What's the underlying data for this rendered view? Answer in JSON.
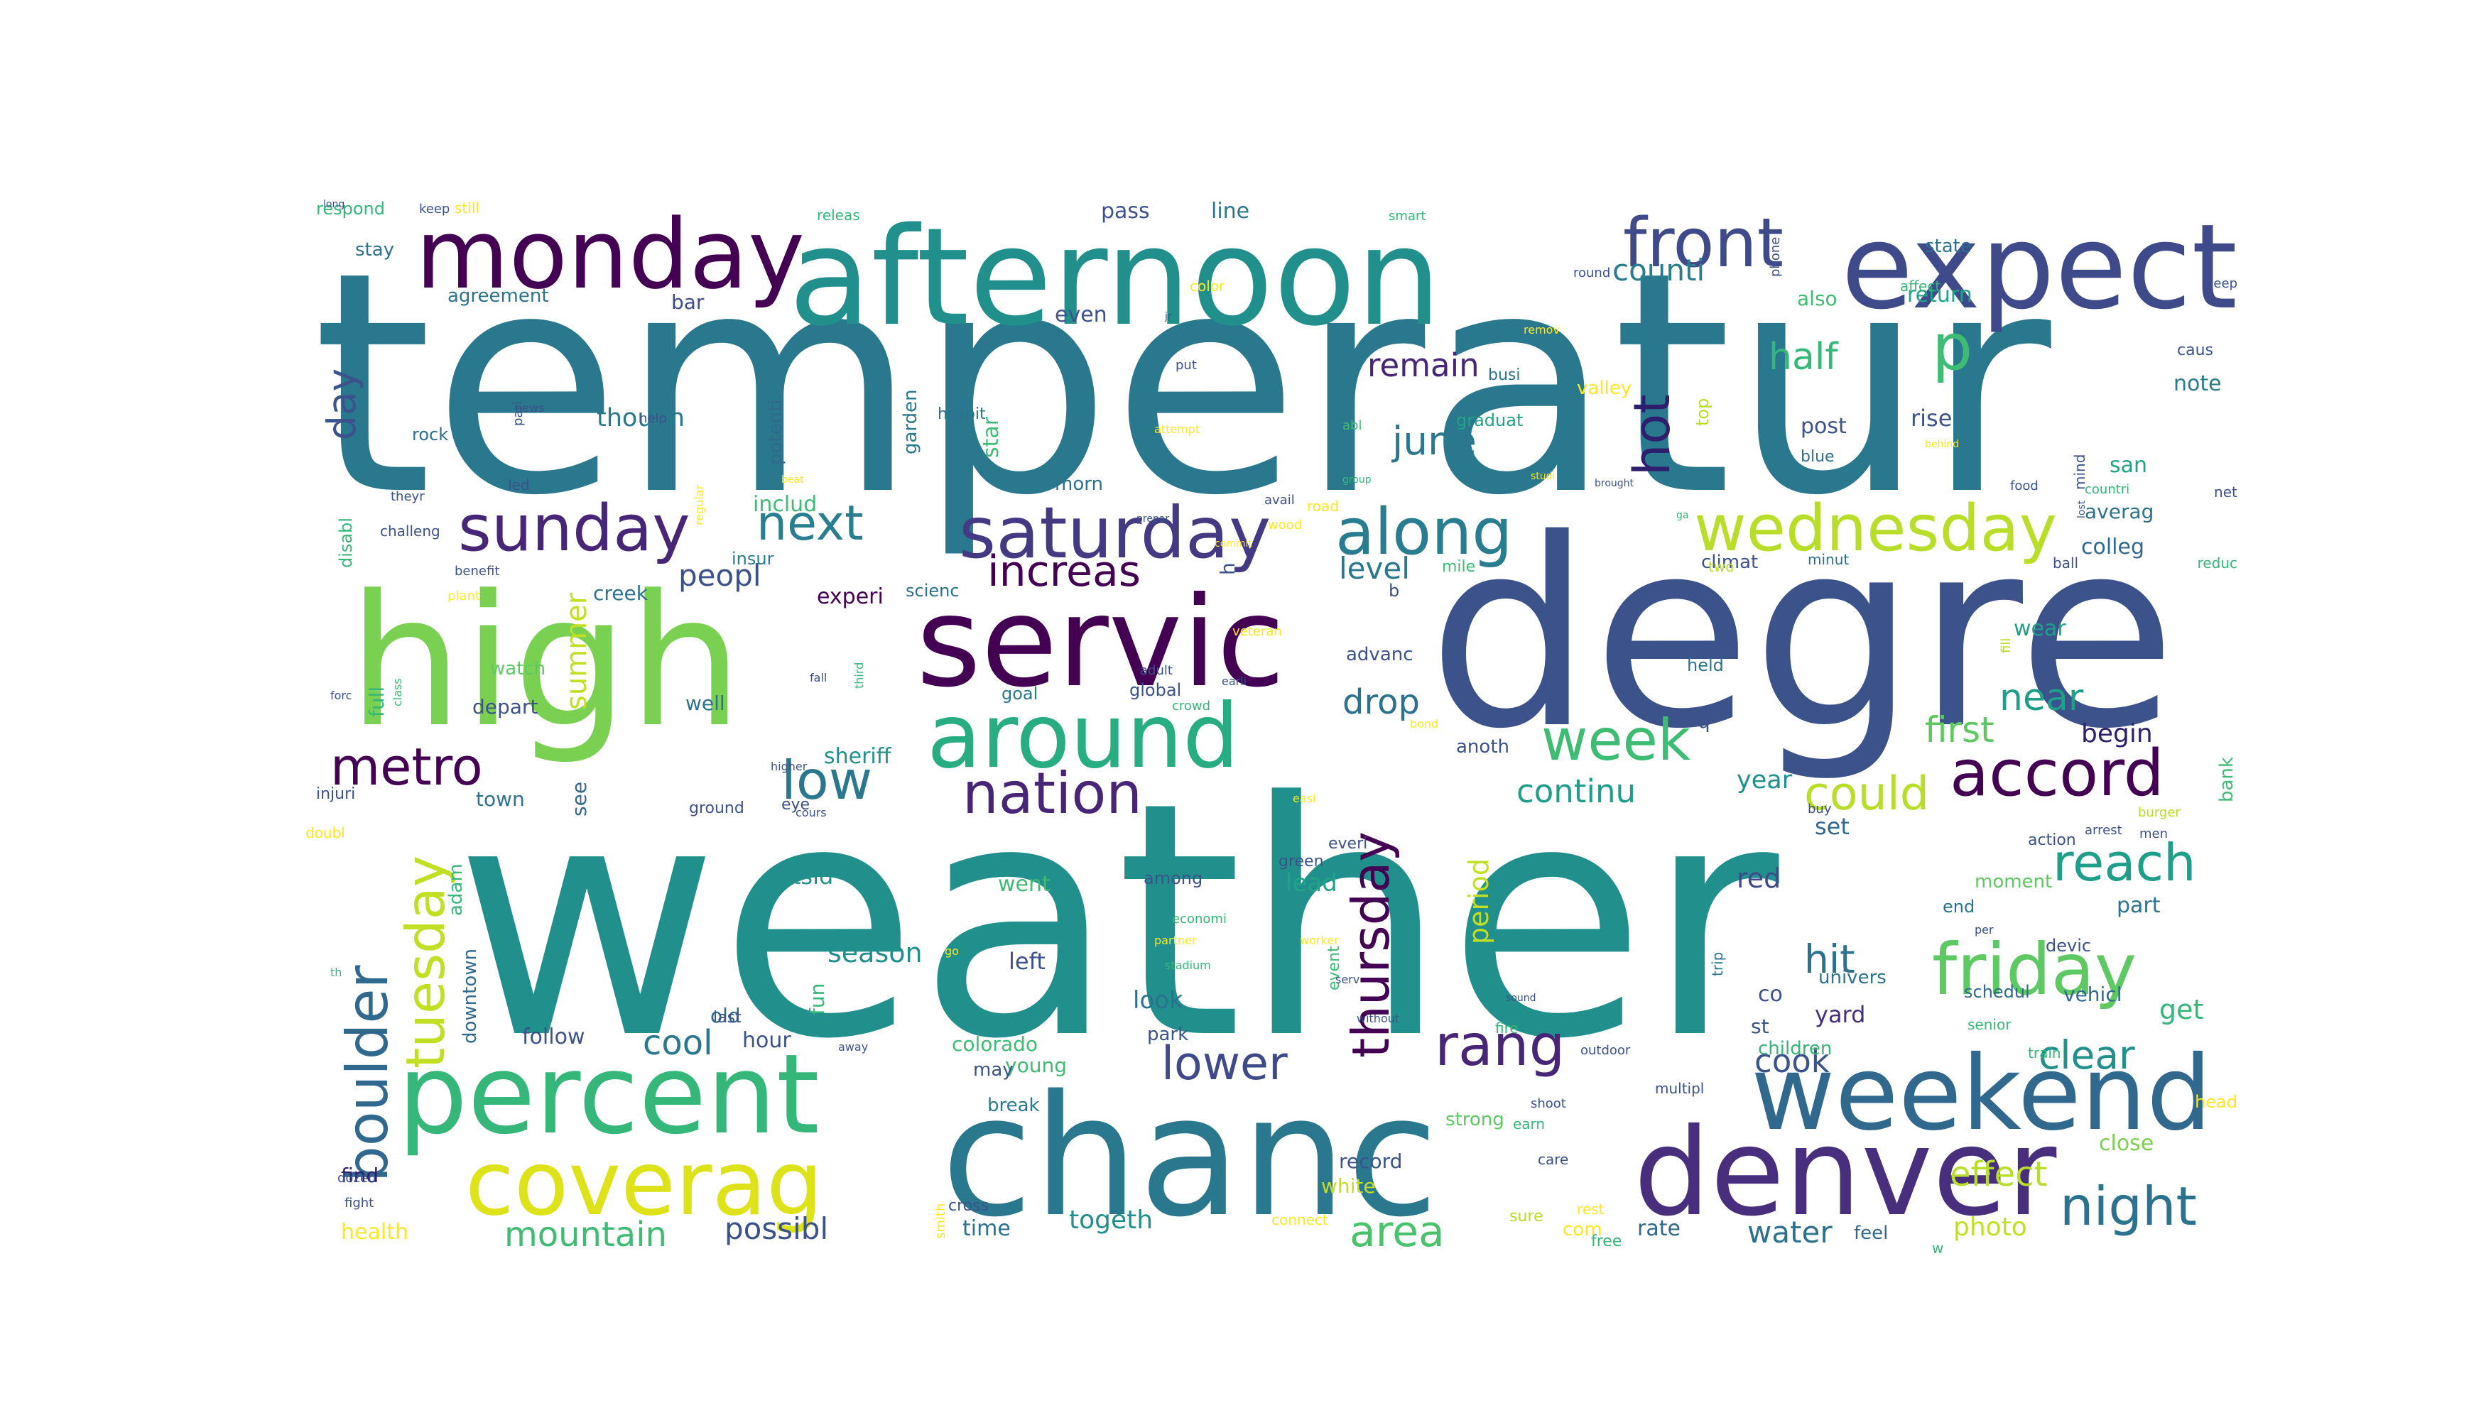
{
  "words": [
    {
      "text": "temperatur",
      "color": "#2a788e"
    },
    {
      "text": "weather",
      "color": "#21908d"
    },
    {
      "text": "degre",
      "color": "#3b528b"
    },
    {
      "text": "high",
      "color": "#7ad151"
    },
    {
      "text": "servic",
      "color": "#440154"
    },
    {
      "text": "chanc",
      "color": "#2a788e"
    },
    {
      "text": "afternoon",
      "color": "#21908d"
    },
    {
      "text": "expect",
      "color": "#3e4a89"
    },
    {
      "text": "monday",
      "color": "#440154"
    },
    {
      "text": "percent",
      "color": "#35b779"
    },
    {
      "text": "coverag",
      "color": "#dde318"
    },
    {
      "text": "denver",
      "color": "#472f7d"
    },
    {
      "text": "weekend",
      "color": "#31688e"
    },
    {
      "text": "around",
      "color": "#27ad81"
    },
    {
      "text": "saturday",
      "color": "#443983"
    },
    {
      "text": "front",
      "color": "#3e4a89"
    },
    {
      "text": "sunday",
      "color": "#482677"
    },
    {
      "text": "along",
      "color": "#287d8e"
    },
    {
      "text": "wednesday",
      "color": "#b8de29"
    },
    {
      "text": "friday",
      "color": "#5ec962"
    },
    {
      "text": "accord",
      "color": "#440154"
    },
    {
      "text": "nation",
      "color": "#482677"
    },
    {
      "text": "boulder",
      "color": "#31688e"
    },
    {
      "text": "tuesday",
      "color": "#c2df23"
    },
    {
      "text": "thursday",
      "color": "#440154"
    },
    {
      "text": "rang",
      "color": "#482677"
    },
    {
      "text": "reach",
      "color": "#1f9e89"
    },
    {
      "text": "night",
      "color": "#2c728e"
    },
    {
      "text": "week",
      "color": "#3fbc73"
    },
    {
      "text": "metro",
      "color": "#440154"
    },
    {
      "text": "low",
      "color": "#2a788e"
    },
    {
      "text": "next",
      "color": "#287d8e"
    },
    {
      "text": "lower",
      "color": "#3e4a89"
    },
    {
      "text": "area",
      "color": "#4ac16d"
    },
    {
      "text": "could",
      "color": "#b8de29"
    },
    {
      "text": "p",
      "color": "#3fbc73"
    },
    {
      "text": "hot",
      "color": "#2d1e6e"
    },
    {
      "text": "increas",
      "color": "#440154"
    },
    {
      "text": "half",
      "color": "#35b779"
    },
    {
      "text": "june",
      "color": "#2a788e"
    },
    {
      "text": "counti",
      "color": "#287d8e"
    },
    {
      "text": "mountain",
      "color": "#3fbc73"
    },
    {
      "text": "day",
      "color": "#3b528b"
    },
    {
      "text": "remain",
      "color": "#482677"
    },
    {
      "text": "hit",
      "color": "#2c728e"
    },
    {
      "text": "clear",
      "color": "#21908d"
    },
    {
      "text": "drop",
      "color": "#2c728e"
    },
    {
      "text": "near",
      "color": "#1f9e89"
    },
    {
      "text": "first",
      "color": "#5ec962"
    },
    {
      "text": "continu",
      "color": "#1f9e89"
    },
    {
      "text": "cook",
      "color": "#3b528b"
    },
    {
      "text": "cool",
      "color": "#2a788e"
    },
    {
      "text": "level",
      "color": "#2a788e"
    },
    {
      "text": "possibl",
      "color": "#3b528b"
    },
    {
      "text": "water",
      "color": "#2c728e"
    },
    {
      "text": "peopl",
      "color": "#3b528b"
    },
    {
      "text": "effect",
      "color": "#b8de29"
    },
    {
      "text": "togeth",
      "color": "#21908d"
    },
    {
      "text": "photo",
      "color": "#c2df23"
    },
    {
      "text": "season",
      "color": "#21908d"
    },
    {
      "text": "year",
      "color": "#21908d"
    },
    {
      "text": "red",
      "color": "#3e4a89"
    },
    {
      "text": "begin",
      "color": "#2d1e6e"
    },
    {
      "text": "get",
      "color": "#35b779"
    },
    {
      "text": "hour",
      "color": "#3b528b"
    },
    {
      "text": "follow",
      "color": "#3b528b"
    },
    {
      "text": "look",
      "color": "#2c728e"
    },
    {
      "text": "left",
      "color": "#3b528b"
    },
    {
      "text": "lead",
      "color": "#20a386"
    },
    {
      "text": "went",
      "color": "#3fbc73"
    },
    {
      "text": "set",
      "color": "#31688e"
    },
    {
      "text": "yard",
      "color": "#472f7d"
    },
    {
      "text": "part",
      "color": "#2c728e"
    },
    {
      "text": "time",
      "color": "#2c728e"
    },
    {
      "text": "town",
      "color": "#2c728e"
    },
    {
      "text": "see",
      "color": "#31688e"
    },
    {
      "text": "summer",
      "color": "#c2df23"
    },
    {
      "text": "period",
      "color": "#c2df23"
    },
    {
      "text": "outsid",
      "color": "#21908d"
    },
    {
      "text": "sheriff",
      "color": "#21908d"
    },
    {
      "text": "experi",
      "color": "#440154"
    },
    {
      "text": "though",
      "color": "#2a788e"
    },
    {
      "text": "wear",
      "color": "#1f9e89"
    },
    {
      "text": "state",
      "color": "#2c728e"
    },
    {
      "text": "return",
      "color": "#20a386"
    },
    {
      "text": "rise",
      "color": "#3b528b"
    },
    {
      "text": "post",
      "color": "#3b528b"
    },
    {
      "text": "san",
      "color": "#20a386"
    },
    {
      "text": "averag",
      "color": "#2c728e"
    },
    {
      "text": "note",
      "color": "#287d8e"
    },
    {
      "text": "colleg",
      "color": "#31688e"
    },
    {
      "text": "also",
      "color": "#3fbc73"
    },
    {
      "text": "even",
      "color": "#3b528b"
    },
    {
      "text": "pass",
      "color": "#3b528b"
    },
    {
      "text": "line",
      "color": "#2a788e"
    },
    {
      "text": "stay",
      "color": "#2c728e"
    },
    {
      "text": "respond",
      "color": "#35b779"
    },
    {
      "text": "agreement",
      "color": "#2c728e"
    },
    {
      "text": "bar",
      "color": "#3e4a89"
    },
    {
      "text": "rock",
      "color": "#2c728e"
    },
    {
      "text": "creek",
      "color": "#2c728e"
    },
    {
      "text": "watch",
      "color": "#5ec962"
    },
    {
      "text": "depart",
      "color": "#3b528b"
    },
    {
      "text": "well",
      "color": "#2c728e"
    },
    {
      "text": "full",
      "color": "#35b779"
    },
    {
      "text": "includ",
      "color": "#3fbc73"
    },
    {
      "text": "insur",
      "color": "#287d8e"
    },
    {
      "text": "morn",
      "color": "#2c728e"
    },
    {
      "text": "scienc",
      "color": "#2c728e"
    },
    {
      "text": "advanc",
      "color": "#3b528b"
    },
    {
      "text": "global",
      "color": "#3b528b"
    },
    {
      "text": "goal",
      "color": "#2a788e"
    },
    {
      "text": "anoth",
      "color": "#3b528b"
    },
    {
      "text": "climat",
      "color": "#3b528b"
    },
    {
      "text": "star",
      "color": "#3fbc73"
    },
    {
      "text": "garden",
      "color": "#2a788e"
    },
    {
      "text": "potenti",
      "color": "#31688e"
    },
    {
      "text": "downtown",
      "color": "#31688e"
    },
    {
      "text": "adam",
      "color": "#35b779"
    },
    {
      "text": "fun",
      "color": "#35b779"
    },
    {
      "text": "univers",
      "color": "#2c728e"
    },
    {
      "text": "children",
      "color": "#35b779"
    },
    {
      "text": "vehicl",
      "color": "#31688e"
    },
    {
      "text": "schedul",
      "color": "#31688e"
    },
    {
      "text": "colorado",
      "color": "#3fbc73"
    },
    {
      "text": "young",
      "color": "#3fbc73"
    },
    {
      "text": "park",
      "color": "#3b528b"
    },
    {
      "text": "may",
      "color": "#3b528b"
    },
    {
      "text": "break",
      "color": "#2a788e"
    },
    {
      "text": "record",
      "color": "#3b528b"
    },
    {
      "text": "white",
      "color": "#c2df23"
    },
    {
      "text": "strong",
      "color": "#5ec962"
    },
    {
      "text": "rate",
      "color": "#31688e"
    },
    {
      "text": "feel",
      "color": "#31688e"
    },
    {
      "text": "close",
      "color": "#7ad151"
    },
    {
      "text": "moment",
      "color": "#5ec962"
    },
    {
      "text": "health",
      "color": "#fde725"
    },
    {
      "text": "find",
      "color": "#2d1e6e"
    },
    {
      "text": "old",
      "color": "#31688e"
    },
    {
      "text": "last",
      "color": "#3b528b"
    },
    {
      "text": "among",
      "color": "#3b528b"
    },
    {
      "text": "green",
      "color": "#3b528b"
    },
    {
      "text": "event",
      "color": "#3fbc73"
    },
    {
      "text": "hospit",
      "color": "#2c728e"
    },
    {
      "text": "graduat",
      "color": "#20a386"
    },
    {
      "text": "valley",
      "color": "#fde725"
    },
    {
      "text": "top",
      "color": "#b8de29"
    },
    {
      "text": "busi",
      "color": "#2c728e"
    },
    {
      "text": "led",
      "color": "#3b528b"
    },
    {
      "text": "disabl",
      "color": "#35b779"
    },
    {
      "text": "challeng",
      "color": "#3b528b"
    },
    {
      "text": "injuri",
      "color": "#3b528b"
    },
    {
      "text": "doubl",
      "color": "#fde725"
    },
    {
      "text": "q",
      "color": "#3b528b"
    },
    {
      "text": "b",
      "color": "#3b528b"
    },
    {
      "text": "h",
      "color": "#3b528b"
    },
    {
      "text": "co",
      "color": "#3b528b"
    },
    {
      "text": "st",
      "color": "#3b528b"
    },
    {
      "text": "com",
      "color": "#fde725"
    },
    {
      "text": "rest",
      "color": "#fde725"
    },
    {
      "text": "trip",
      "color": "#2c728e"
    },
    {
      "text": "devic",
      "color": "#3b528b"
    },
    {
      "text": "end",
      "color": "#2c728e"
    },
    {
      "text": "bank",
      "color": "#3fbc73"
    },
    {
      "text": "head",
      "color": "#fde725"
    },
    {
      "text": "blue",
      "color": "#2c728e"
    },
    {
      "text": "held",
      "color": "#2c728e"
    },
    {
      "text": "everi",
      "color": "#3b528b"
    },
    {
      "text": "eye",
      "color": "#3b528b"
    },
    {
      "text": "ground",
      "color": "#3b528b"
    },
    {
      "text": "mile",
      "color": "#3fbc73"
    },
    {
      "text": "two",
      "color": "#b8de29"
    },
    {
      "text": "ball",
      "color": "#3b528b"
    },
    {
      "text": "caus",
      "color": "#3b528b"
    },
    {
      "text": "net",
      "color": "#3b528b"
    },
    {
      "text": "reduc",
      "color": "#35b779"
    },
    {
      "text": "minut",
      "color": "#2c728e"
    },
    {
      "text": "food",
      "color": "#3b528b"
    },
    {
      "text": "countri",
      "color": "#35b779"
    },
    {
      "text": "mind",
      "color": "#3b528b"
    },
    {
      "text": "fill",
      "color": "#b8de29"
    },
    {
      "text": "action",
      "color": "#3b528b"
    },
    {
      "text": "arrest",
      "color": "#3b528b"
    },
    {
      "text": "men",
      "color": "#3b528b"
    },
    {
      "text": "burger",
      "color": "#b8de29"
    },
    {
      "text": "buy",
      "color": "#3b528b"
    },
    {
      "text": "senior",
      "color": "#35b779"
    },
    {
      "text": "train",
      "color": "#35b779"
    },
    {
      "text": "sure",
      "color": "#b8de29"
    },
    {
      "text": "free",
      "color": "#35b779"
    },
    {
      "text": "care",
      "color": "#3b528b"
    },
    {
      "text": "earn",
      "color": "#35b779"
    },
    {
      "text": "shoot",
      "color": "#3b528b"
    },
    {
      "text": "outdoor",
      "color": "#3b528b"
    },
    {
      "text": "fire",
      "color": "#35b779"
    },
    {
      "text": "connect",
      "color": "#fde725"
    },
    {
      "text": "cross",
      "color": "#3b528b"
    },
    {
      "text": "smith",
      "color": "#fde725"
    },
    {
      "text": "fight",
      "color": "#3b528b"
    },
    {
      "text": "dozen",
      "color": "#3b528b"
    },
    {
      "text": "plant",
      "color": "#fde725"
    },
    {
      "text": "benefit",
      "color": "#3b528b"
    },
    {
      "text": "forc",
      "color": "#3b528b"
    },
    {
      "text": "class",
      "color": "#3fbc73"
    },
    {
      "text": "third",
      "color": "#35b779"
    },
    {
      "text": "fall",
      "color": "#3b528b"
    },
    {
      "text": "higher",
      "color": "#3b528b"
    },
    {
      "text": "cours",
      "color": "#3b528b"
    },
    {
      "text": "road",
      "color": "#fde725"
    },
    {
      "text": "wood",
      "color": "#fde725"
    },
    {
      "text": "avail",
      "color": "#3b528b"
    },
    {
      "text": "abl",
      "color": "#3fbc73"
    },
    {
      "text": "put",
      "color": "#3b528b"
    },
    {
      "text": "color",
      "color": "#fde725"
    },
    {
      "text": "releas",
      "color": "#35b779"
    },
    {
      "text": "keep",
      "color": "#3b528b"
    },
    {
      "text": "still",
      "color": "#fde725"
    },
    {
      "text": "smart",
      "color": "#35b779"
    },
    {
      "text": "round",
      "color": "#3b528b"
    },
    {
      "text": "phone",
      "color": "#3b528b"
    },
    {
      "text": "affect",
      "color": "#35b779"
    },
    {
      "text": "deep",
      "color": "#3b528b"
    },
    {
      "text": "help",
      "color": "#3b528b"
    },
    {
      "text": "news",
      "color": "#3b528b"
    },
    {
      "text": "pari",
      "color": "#3b528b"
    },
    {
      "text": "theyr",
      "color": "#3b528b"
    },
    {
      "text": "regular",
      "color": "#fde725"
    },
    {
      "text": "adult",
      "color": "#3b528b"
    },
    {
      "text": "earli",
      "color": "#3b528b"
    },
    {
      "text": "veteran",
      "color": "#fde725"
    },
    {
      "text": "crowd",
      "color": "#35b779"
    },
    {
      "text": "bond",
      "color": "#fde725"
    },
    {
      "text": "easi",
      "color": "#fde725"
    },
    {
      "text": "stadium",
      "color": "#35b779"
    },
    {
      "text": "worker",
      "color": "#fde725"
    },
    {
      "text": "economi",
      "color": "#35b779"
    },
    {
      "text": "partner",
      "color": "#fde725"
    },
    {
      "text": "go",
      "color": "#fde725"
    },
    {
      "text": "serv",
      "color": "#3b528b"
    },
    {
      "text": "away",
      "color": "#3b528b"
    },
    {
      "text": "without",
      "color": "#3b528b"
    },
    {
      "text": "per",
      "color": "#3b528b"
    },
    {
      "text": "th",
      "color": "#35b779"
    },
    {
      "text": "w",
      "color": "#35b779"
    },
    {
      "text": "multipl",
      "color": "#3b528b"
    },
    {
      "text": "beat",
      "color": "#fde725"
    },
    {
      "text": "brought",
      "color": "#3b528b"
    },
    {
      "text": "studi",
      "color": "#fde725"
    },
    {
      "text": "group",
      "color": "#35b779"
    },
    {
      "text": "behind",
      "color": "#fde725"
    },
    {
      "text": "remov",
      "color": "#fde725"
    },
    {
      "text": "jr",
      "color": "#3b528b"
    },
    {
      "text": "long",
      "color": "#3b528b"
    },
    {
      "text": "prepar",
      "color": "#3b528b"
    },
    {
      "text": "commit",
      "color": "#fde725"
    },
    {
      "text": "ga",
      "color": "#35b779"
    },
    {
      "text": "lost",
      "color": "#3b528b"
    },
    {
      "text": "attempt",
      "color": "#fde725"
    },
    {
      "text": "sound",
      "color": "#3b528b"
    }
  ]
}
